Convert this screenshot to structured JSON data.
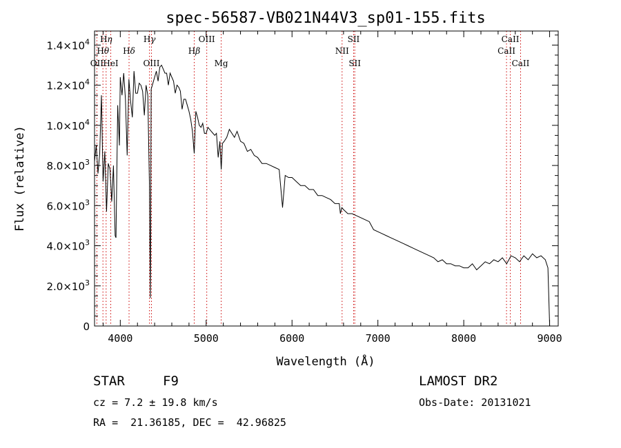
{
  "chart_data": {
    "type": "line",
    "title": "spec-56587-VB021N44V3_sp01-155.fits",
    "xlabel": "Wavelength (Å)",
    "ylabel": "Flux (relative)",
    "xlim": [
      3700,
      9100
    ],
    "ylim": [
      0,
      14700
    ],
    "x_ticks": [
      4000,
      5000,
      6000,
      7000,
      8000,
      9000
    ],
    "x_tick_labels": [
      "4000",
      "5000",
      "6000",
      "7000",
      "8000",
      "9000"
    ],
    "y_ticks": [
      0,
      2000,
      4000,
      6000,
      8000,
      10000,
      12000,
      14000
    ],
    "y_tick_labels": [
      {
        "mantissa": "0",
        "exponent": ""
      },
      {
        "mantissa": "2.0×10",
        "exponent": "3"
      },
      {
        "mantissa": "4.0×10",
        "exponent": "3"
      },
      {
        "mantissa": "6.0×10",
        "exponent": "3"
      },
      {
        "mantissa": "8.0×10",
        "exponent": "3"
      },
      {
        "mantissa": "1.0×10",
        "exponent": "4"
      },
      {
        "mantissa": "1.2×10",
        "exponent": "4"
      },
      {
        "mantissa": "1.4×10",
        "exponent": "4"
      }
    ],
    "spectrum": {
      "x": [
        3700,
        3720,
        3740,
        3760,
        3780,
        3800,
        3820,
        3840,
        3860,
        3880,
        3900,
        3920,
        3940,
        3950,
        3970,
        3990,
        4000,
        4020,
        4040,
        4060,
        4080,
        4100,
        4120,
        4140,
        4160,
        4180,
        4200,
        4220,
        4240,
        4260,
        4280,
        4300,
        4320,
        4340,
        4350,
        4360,
        4380,
        4400,
        4420,
        4440,
        4460,
        4480,
        4500,
        4520,
        4540,
        4560,
        4580,
        4600,
        4620,
        4640,
        4660,
        4680,
        4700,
        4720,
        4740,
        4760,
        4780,
        4800,
        4820,
        4840,
        4861,
        4880,
        4900,
        4920,
        4940,
        4960,
        4980,
        5000,
        5020,
        5040,
        5060,
        5080,
        5100,
        5120,
        5140,
        5160,
        5175,
        5190,
        5210,
        5240,
        5270,
        5300,
        5330,
        5360,
        5400,
        5440,
        5480,
        5520,
        5560,
        5600,
        5650,
        5700,
        5750,
        5800,
        5850,
        5890,
        5920,
        5960,
        6000,
        6050,
        6100,
        6150,
        6200,
        6250,
        6300,
        6350,
        6400,
        6450,
        6500,
        6550,
        6563,
        6580,
        6600,
        6650,
        6700,
        6750,
        6800,
        6850,
        6900,
        6950,
        7000,
        7050,
        7100,
        7150,
        7200,
        7250,
        7300,
        7350,
        7400,
        7450,
        7500,
        7550,
        7600,
        7650,
        7700,
        7750,
        7800,
        7850,
        7900,
        7950,
        8000,
        8050,
        8100,
        8150,
        8200,
        8250,
        8300,
        8350,
        8400,
        8450,
        8500,
        8550,
        8600,
        8650,
        8700,
        8750,
        8800,
        8850,
        8900,
        8950,
        8980,
        8990,
        9000
      ],
      "y": [
        8200,
        9000,
        7600,
        8600,
        11500,
        7200,
        8700,
        5700,
        8100,
        7800,
        6200,
        8000,
        4500,
        4400,
        11000,
        9000,
        12400,
        11500,
        12600,
        11300,
        8500,
        12300,
        11200,
        10400,
        12700,
        11600,
        11600,
        12100,
        12000,
        11700,
        10500,
        12000,
        11500,
        7000,
        1400,
        11800,
        12100,
        12400,
        12700,
        12200,
        12900,
        13000,
        12800,
        12600,
        12600,
        12000,
        12600,
        12400,
        12200,
        11600,
        12000,
        11900,
        11700,
        10800,
        11300,
        11300,
        11000,
        10700,
        10300,
        9700,
        8600,
        10700,
        10400,
        10000,
        9900,
        10100,
        9600,
        9600,
        9900,
        9800,
        9700,
        9600,
        9500,
        9600,
        8400,
        9200,
        7800,
        9100,
        9200,
        9400,
        9800,
        9600,
        9400,
        9700,
        9200,
        9100,
        8700,
        8800,
        8500,
        8400,
        8100,
        8100,
        8000,
        7900,
        7800,
        5900,
        7500,
        7400,
        7400,
        7200,
        7000,
        7000,
        6800,
        6800,
        6500,
        6500,
        6400,
        6300,
        6100,
        6100,
        5600,
        5900,
        5800,
        5600,
        5600,
        5500,
        5400,
        5300,
        5200,
        4800,
        4700,
        4600,
        4500,
        4400,
        4300,
        4200,
        4100,
        4000,
        3900,
        3800,
        3700,
        3600,
        3500,
        3400,
        3200,
        3300,
        3100,
        3100,
        3000,
        3000,
        2900,
        2900,
        3100,
        2800,
        3000,
        3200,
        3100,
        3300,
        3200,
        3400,
        3100,
        3500,
        3400,
        3200,
        3500,
        3300,
        3600,
        3400,
        3500,
        3300,
        2900,
        1500,
        0
      ]
    },
    "lines": [
      {
        "label": "Hη",
        "wave": 3835,
        "row": 0,
        "style": "italic"
      },
      {
        "label": "Hθ",
        "wave": 3798,
        "row": 1,
        "style": "italic"
      },
      {
        "label": "OII",
        "wave": 3727,
        "row": 2,
        "style": "plain"
      },
      {
        "label": "HeI",
        "wave": 3889,
        "row": 2,
        "style": "plain"
      },
      {
        "label": "Hδ",
        "wave": 4102,
        "row": 1,
        "style": "italic"
      },
      {
        "label": "Hγ",
        "wave": 4340,
        "row": 0,
        "style": "italic"
      },
      {
        "label": "OIII",
        "wave": 4363,
        "row": 2,
        "style": "plain"
      },
      {
        "label": "Hβ",
        "wave": 4861,
        "row": 1,
        "style": "italic"
      },
      {
        "label": "OIII",
        "wave": 5007,
        "row": 0,
        "style": "plain"
      },
      {
        "label": "Mg",
        "wave": 5175,
        "row": 2,
        "style": "plain"
      },
      {
        "label": "SII",
        "wave": 6717,
        "row": 0,
        "style": "plain"
      },
      {
        "label": "NII",
        "wave": 6583,
        "row": 1,
        "style": "plain"
      },
      {
        "label": "SII",
        "wave": 6731,
        "row": 2,
        "style": "plain"
      },
      {
        "label": "CaII",
        "wave": 8542,
        "row": 0,
        "style": "plain"
      },
      {
        "label": "CaII",
        "wave": 8498,
        "row": 1,
        "style": "plain"
      },
      {
        "label": "CaII",
        "wave": 8662,
        "row": 2,
        "style": "plain"
      }
    ],
    "line_marker_color": "#cc0000",
    "grid": false,
    "legend": "none"
  },
  "info": {
    "object_class": "STAR",
    "subclass": "F9",
    "survey": "LAMOST DR2",
    "redshift": "cz = 7.2 ± 19.8 km/s",
    "obs_date": "Obs-Date: 20131021",
    "coords": "RA =  21.36185, DEC =  42.96825"
  }
}
